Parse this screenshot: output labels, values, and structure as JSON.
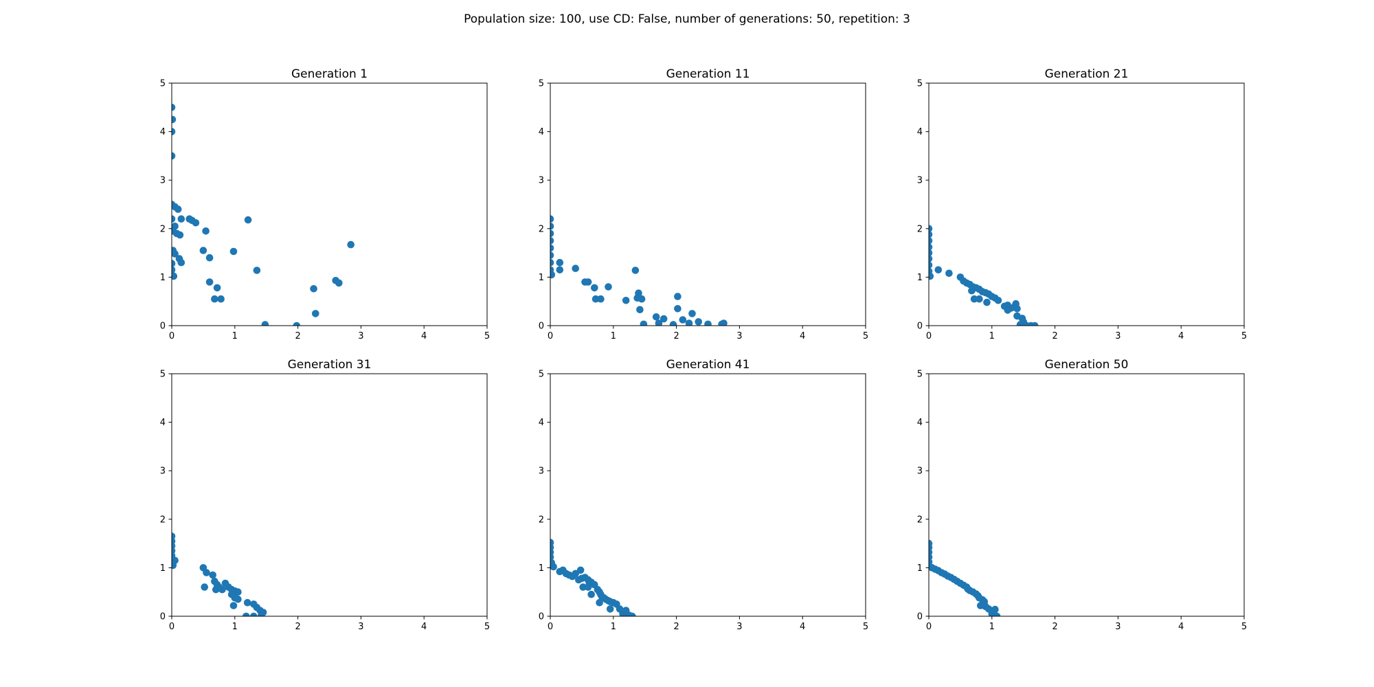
{
  "figure": {
    "suptitle": "Population size: 100, use CD: False, number of generations: 50, repetition: 3",
    "marker_color": "#1f77b4"
  },
  "chart_data": [
    {
      "type": "scatter",
      "title": "Generation 1",
      "xlim": [
        0,
        5
      ],
      "ylim": [
        0,
        5
      ],
      "xticks": [
        "0",
        "1",
        "2",
        "3",
        "4",
        "5"
      ],
      "yticks": [
        "0",
        "1",
        "2",
        "3",
        "4",
        "5"
      ],
      "grid": false,
      "points": [
        [
          0.0,
          4.5
        ],
        [
          0.01,
          4.25
        ],
        [
          0.0,
          4.0
        ],
        [
          0.0,
          3.5
        ],
        [
          0.0,
          2.5
        ],
        [
          0.05,
          2.45
        ],
        [
          0.1,
          2.4
        ],
        [
          0.0,
          2.2
        ],
        [
          0.15,
          2.2
        ],
        [
          0.28,
          2.2
        ],
        [
          0.32,
          2.17
        ],
        [
          0.38,
          2.12
        ],
        [
          0.05,
          2.05
        ],
        [
          0.02,
          1.95
        ],
        [
          0.08,
          1.9
        ],
        [
          0.13,
          1.87
        ],
        [
          0.54,
          1.95
        ],
        [
          0.02,
          1.55
        ],
        [
          0.05,
          1.48
        ],
        [
          0.5,
          1.55
        ],
        [
          0.6,
          1.4
        ],
        [
          0.12,
          1.38
        ],
        [
          0.15,
          1.3
        ],
        [
          0.0,
          1.28
        ],
        [
          0.0,
          1.15
        ],
        [
          0.0,
          1.05
        ],
        [
          0.03,
          1.02
        ],
        [
          0.6,
          0.9
        ],
        [
          0.72,
          0.78
        ],
        [
          0.68,
          0.55
        ],
        [
          0.78,
          0.55
        ],
        [
          0.98,
          1.53
        ],
        [
          1.21,
          2.18
        ],
        [
          1.35,
          1.14
        ],
        [
          1.48,
          0.02
        ],
        [
          1.98,
          0.0
        ],
        [
          2.25,
          0.76
        ],
        [
          2.28,
          0.25
        ],
        [
          2.6,
          0.93
        ],
        [
          2.65,
          0.88
        ],
        [
          2.84,
          1.67
        ]
      ]
    },
    {
      "type": "scatter",
      "title": "Generation 11",
      "xlim": [
        0,
        5
      ],
      "ylim": [
        0,
        5
      ],
      "xticks": [
        "0",
        "1",
        "2",
        "3",
        "4",
        "5"
      ],
      "yticks": [
        "0",
        "1",
        "2",
        "3",
        "4",
        "5"
      ],
      "grid": false,
      "points": [
        [
          0.0,
          2.2
        ],
        [
          0.0,
          2.05
        ],
        [
          0.0,
          1.9
        ],
        [
          0.0,
          1.75
        ],
        [
          0.0,
          1.6
        ],
        [
          0.0,
          1.45
        ],
        [
          0.0,
          1.3
        ],
        [
          0.0,
          1.15
        ],
        [
          0.02,
          1.05
        ],
        [
          0.15,
          1.3
        ],
        [
          0.15,
          1.15
        ],
        [
          0.4,
          1.18
        ],
        [
          0.55,
          0.9
        ],
        [
          0.6,
          0.9
        ],
        [
          0.7,
          0.78
        ],
        [
          0.72,
          0.55
        ],
        [
          0.8,
          0.55
        ],
        [
          0.92,
          0.8
        ],
        [
          1.2,
          0.52
        ],
        [
          1.35,
          1.14
        ],
        [
          1.4,
          0.67
        ],
        [
          1.38,
          0.57
        ],
        [
          1.45,
          0.55
        ],
        [
          1.42,
          0.33
        ],
        [
          1.48,
          0.03
        ],
        [
          1.68,
          0.18
        ],
        [
          1.72,
          0.05
        ],
        [
          1.8,
          0.14
        ],
        [
          1.95,
          0.02
        ],
        [
          2.02,
          0.6
        ],
        [
          2.02,
          0.35
        ],
        [
          2.1,
          0.12
        ],
        [
          2.2,
          0.05
        ],
        [
          2.25,
          0.25
        ],
        [
          2.35,
          0.08
        ],
        [
          2.5,
          0.03
        ],
        [
          2.72,
          0.03
        ],
        [
          2.75,
          0.05
        ]
      ]
    },
    {
      "type": "scatter",
      "title": "Generation 21",
      "xlim": [
        0,
        5
      ],
      "ylim": [
        0,
        5
      ],
      "xticks": [
        "0",
        "1",
        "2",
        "3",
        "4",
        "5"
      ],
      "yticks": [
        "0",
        "1",
        "2",
        "3",
        "4",
        "5"
      ],
      "grid": false,
      "points": [
        [
          0.0,
          2.0
        ],
        [
          0.0,
          1.88
        ],
        [
          0.0,
          1.75
        ],
        [
          0.0,
          1.62
        ],
        [
          0.0,
          1.5
        ],
        [
          0.0,
          1.38
        ],
        [
          0.0,
          1.25
        ],
        [
          0.0,
          1.12
        ],
        [
          0.02,
          1.02
        ],
        [
          0.15,
          1.15
        ],
        [
          0.32,
          1.08
        ],
        [
          0.5,
          1.0
        ],
        [
          0.55,
          0.92
        ],
        [
          0.6,
          0.88
        ],
        [
          0.65,
          0.85
        ],
        [
          0.7,
          0.8
        ],
        [
          0.75,
          0.78
        ],
        [
          0.8,
          0.75
        ],
        [
          0.68,
          0.72
        ],
        [
          0.72,
          0.55
        ],
        [
          0.8,
          0.55
        ],
        [
          0.85,
          0.7
        ],
        [
          0.9,
          0.68
        ],
        [
          0.95,
          0.65
        ],
        [
          1.0,
          0.6
        ],
        [
          1.05,
          0.57
        ],
        [
          1.1,
          0.52
        ],
        [
          0.92,
          0.48
        ],
        [
          1.2,
          0.4
        ],
        [
          1.25,
          0.42
        ],
        [
          1.3,
          0.36
        ],
        [
          1.35,
          0.38
        ],
        [
          1.38,
          0.45
        ],
        [
          1.4,
          0.35
        ],
        [
          1.25,
          0.32
        ],
        [
          1.4,
          0.2
        ],
        [
          1.48,
          0.15
        ],
        [
          1.5,
          0.08
        ],
        [
          1.45,
          0.02
        ],
        [
          1.55,
          0.0
        ],
        [
          1.62,
          0.0
        ],
        [
          1.68,
          0.0
        ]
      ]
    },
    {
      "type": "scatter",
      "title": "Generation 31",
      "xlim": [
        0,
        5
      ],
      "ylim": [
        0,
        5
      ],
      "xticks": [
        "0",
        "1",
        "2",
        "3",
        "4",
        "5"
      ],
      "yticks": [
        "0",
        "1",
        "2",
        "3",
        "4",
        "5"
      ],
      "grid": false,
      "points": [
        [
          0.0,
          1.65
        ],
        [
          0.0,
          1.55
        ],
        [
          0.0,
          1.45
        ],
        [
          0.0,
          1.35
        ],
        [
          0.0,
          1.25
        ],
        [
          0.0,
          1.15
        ],
        [
          0.02,
          1.05
        ],
        [
          0.05,
          1.15
        ],
        [
          0.5,
          1.0
        ],
        [
          0.55,
          0.9
        ],
        [
          0.65,
          0.85
        ],
        [
          0.68,
          0.72
        ],
        [
          0.72,
          0.65
        ],
        [
          0.75,
          0.6
        ],
        [
          0.52,
          0.6
        ],
        [
          0.7,
          0.55
        ],
        [
          0.8,
          0.55
        ],
        [
          0.85,
          0.68
        ],
        [
          0.9,
          0.6
        ],
        [
          0.95,
          0.55
        ],
        [
          1.0,
          0.52
        ],
        [
          1.05,
          0.5
        ],
        [
          0.95,
          0.45
        ],
        [
          1.0,
          0.38
        ],
        [
          1.05,
          0.35
        ],
        [
          0.98,
          0.22
        ],
        [
          1.2,
          0.28
        ],
        [
          1.3,
          0.25
        ],
        [
          1.35,
          0.18
        ],
        [
          1.4,
          0.12
        ],
        [
          1.45,
          0.08
        ],
        [
          1.42,
          0.02
        ],
        [
          1.18,
          0.0
        ],
        [
          1.3,
          0.0
        ]
      ]
    },
    {
      "type": "scatter",
      "title": "Generation 41",
      "xlim": [
        0,
        5
      ],
      "ylim": [
        0,
        5
      ],
      "xticks": [
        "0",
        "1",
        "2",
        "3",
        "4",
        "5"
      ],
      "yticks": [
        "0",
        "1",
        "2",
        "3",
        "4",
        "5"
      ],
      "grid": false,
      "points": [
        [
          0.0,
          1.52
        ],
        [
          0.0,
          1.42
        ],
        [
          0.0,
          1.32
        ],
        [
          0.0,
          1.22
        ],
        [
          0.02,
          1.1
        ],
        [
          0.05,
          1.02
        ],
        [
          0.15,
          0.92
        ],
        [
          0.2,
          0.95
        ],
        [
          0.25,
          0.88
        ],
        [
          0.3,
          0.85
        ],
        [
          0.35,
          0.82
        ],
        [
          0.4,
          0.88
        ],
        [
          0.45,
          0.75
        ],
        [
          0.5,
          0.78
        ],
        [
          0.48,
          0.95
        ],
        [
          0.55,
          0.8
        ],
        [
          0.6,
          0.75
        ],
        [
          0.62,
          0.68
        ],
        [
          0.65,
          0.7
        ],
        [
          0.7,
          0.65
        ],
        [
          0.52,
          0.6
        ],
        [
          0.6,
          0.6
        ],
        [
          0.65,
          0.45
        ],
        [
          0.75,
          0.55
        ],
        [
          0.78,
          0.5
        ],
        [
          0.8,
          0.45
        ],
        [
          0.82,
          0.4
        ],
        [
          0.85,
          0.38
        ],
        [
          0.88,
          0.35
        ],
        [
          0.78,
          0.28
        ],
        [
          0.92,
          0.32
        ],
        [
          0.95,
          0.3
        ],
        [
          1.0,
          0.28
        ],
        [
          1.05,
          0.25
        ],
        [
          0.95,
          0.15
        ],
        [
          1.1,
          0.15
        ],
        [
          1.15,
          0.05
        ],
        [
          1.2,
          0.12
        ],
        [
          1.25,
          0.02
        ],
        [
          1.3,
          0.0
        ]
      ]
    },
    {
      "type": "scatter",
      "title": "Generation 50",
      "xlim": [
        0,
        5
      ],
      "ylim": [
        0,
        5
      ],
      "xticks": [
        "0",
        "1",
        "2",
        "3",
        "4",
        "5"
      ],
      "yticks": [
        "0",
        "1",
        "2",
        "3",
        "4",
        "5"
      ],
      "grid": false,
      "points": [
        [
          0.0,
          1.5
        ],
        [
          0.0,
          1.42
        ],
        [
          0.0,
          1.32
        ],
        [
          0.0,
          1.22
        ],
        [
          0.0,
          1.12
        ],
        [
          0.02,
          1.02
        ],
        [
          0.05,
          1.0
        ],
        [
          0.1,
          0.97
        ],
        [
          0.15,
          0.94
        ],
        [
          0.2,
          0.9
        ],
        [
          0.25,
          0.87
        ],
        [
          0.3,
          0.83
        ],
        [
          0.35,
          0.8
        ],
        [
          0.4,
          0.76
        ],
        [
          0.45,
          0.72
        ],
        [
          0.5,
          0.68
        ],
        [
          0.55,
          0.64
        ],
        [
          0.6,
          0.6
        ],
        [
          0.62,
          0.56
        ],
        [
          0.65,
          0.53
        ],
        [
          0.7,
          0.5
        ],
        [
          0.75,
          0.46
        ],
        [
          0.78,
          0.42
        ],
        [
          0.8,
          0.38
        ],
        [
          0.85,
          0.34
        ],
        [
          0.88,
          0.3
        ],
        [
          0.82,
          0.22
        ],
        [
          0.9,
          0.2
        ],
        [
          0.95,
          0.15
        ],
        [
          1.05,
          0.14
        ],
        [
          1.0,
          0.05
        ],
        [
          1.05,
          0.02
        ],
        [
          1.08,
          0.0
        ]
      ]
    }
  ]
}
